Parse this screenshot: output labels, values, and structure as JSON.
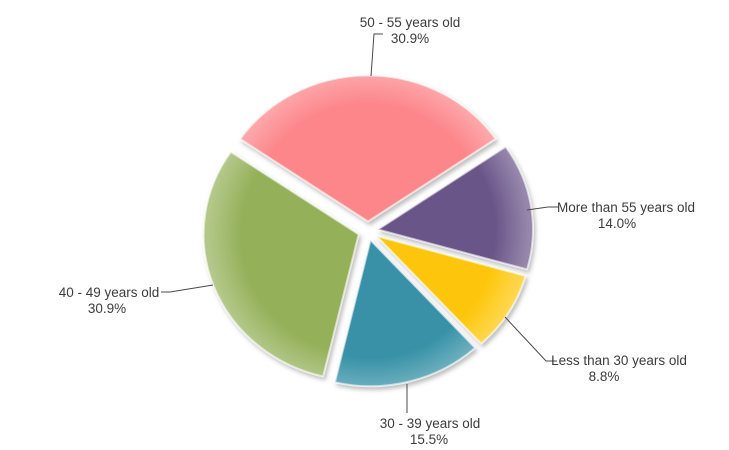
{
  "page": {
    "background": "#ffffff"
  },
  "chart_data": {
    "type": "pie",
    "title": "",
    "legend": "none",
    "label_style": "outside labels (category name + percent) with leader lines",
    "start_angle_deg": -55.6,
    "direction": "clockwise",
    "explode": "all slices exploded",
    "line_color": "#4a4a4a",
    "text_color": "#3c3c3c",
    "slices": [
      {
        "label": "50 - 55 years old",
        "pct_label": "30.9%",
        "value": 30.9,
        "color": "#FC868A"
      },
      {
        "label": "More than 55 years old",
        "pct_label": "14.0%",
        "value": 14.0,
        "color": "#6A5589"
      },
      {
        "label": "Less than 30 years old",
        "pct_label": "8.8%",
        "value": 8.8,
        "color": "#FDC608"
      },
      {
        "label": "30 - 39 years old",
        "pct_label": "15.5%",
        "value": 15.5,
        "color": "#3791A6"
      },
      {
        "label": "40 - 49 years old",
        "pct_label": "30.9%",
        "value": 30.9,
        "color": "#94B059"
      }
    ]
  }
}
